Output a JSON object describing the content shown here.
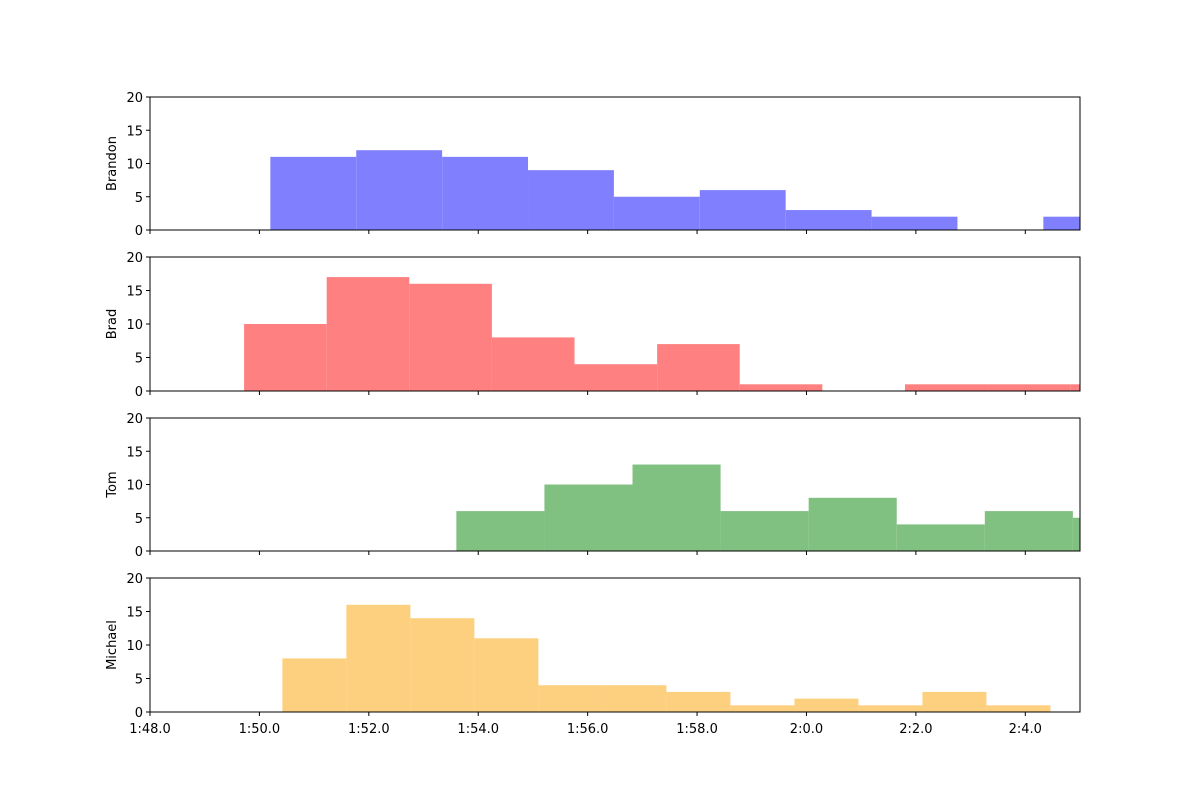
{
  "chart_data": [
    {
      "type": "bar",
      "ylabel": "Brandon",
      "color": "#8080ff",
      "ylim": [
        0,
        20
      ],
      "yticks": [
        0,
        5,
        10,
        15,
        20
      ],
      "xlim": [
        108,
        125
      ],
      "bins": [
        {
          "x0": 110.2,
          "x1": 111.77,
          "value": 11
        },
        {
          "x0": 111.77,
          "x1": 113.34,
          "value": 12
        },
        {
          "x0": 113.34,
          "x1": 114.91,
          "value": 11
        },
        {
          "x0": 114.91,
          "x1": 116.48,
          "value": 9
        },
        {
          "x0": 116.48,
          "x1": 118.05,
          "value": 5
        },
        {
          "x0": 118.05,
          "x1": 119.62,
          "value": 6
        },
        {
          "x0": 119.62,
          "x1": 121.19,
          "value": 3
        },
        {
          "x0": 121.19,
          "x1": 122.76,
          "value": 2
        },
        {
          "x0": 124.33,
          "x1": 125.9,
          "value": 2
        }
      ]
    },
    {
      "type": "bar",
      "ylabel": "Brad",
      "color": "#ff8080",
      "ylim": [
        0,
        20
      ],
      "yticks": [
        0,
        5,
        10,
        15,
        20
      ],
      "xlim": [
        108,
        125
      ],
      "bins": [
        {
          "x0": 109.72,
          "x1": 111.23,
          "value": 10
        },
        {
          "x0": 111.23,
          "x1": 112.74,
          "value": 17
        },
        {
          "x0": 112.74,
          "x1": 114.25,
          "value": 16
        },
        {
          "x0": 114.25,
          "x1": 115.76,
          "value": 8
        },
        {
          "x0": 115.76,
          "x1": 117.27,
          "value": 4
        },
        {
          "x0": 117.27,
          "x1": 118.78,
          "value": 7
        },
        {
          "x0": 118.78,
          "x1": 120.29,
          "value": 1
        },
        {
          "x0": 121.8,
          "x1": 123.31,
          "value": 1
        },
        {
          "x0": 123.31,
          "x1": 124.82,
          "value": 1
        },
        {
          "x0": 124.82,
          "x1": 126.33,
          "value": 1
        }
      ]
    },
    {
      "type": "bar",
      "ylabel": "Tom",
      "color": "#80c080",
      "ylim": [
        0,
        20
      ],
      "yticks": [
        0,
        5,
        10,
        15,
        20
      ],
      "xlim": [
        108,
        125
      ],
      "bins": [
        {
          "x0": 113.6,
          "x1": 115.21,
          "value": 6
        },
        {
          "x0": 115.21,
          "x1": 116.82,
          "value": 10
        },
        {
          "x0": 116.82,
          "x1": 118.43,
          "value": 13
        },
        {
          "x0": 118.43,
          "x1": 120.04,
          "value": 6
        },
        {
          "x0": 120.04,
          "x1": 121.65,
          "value": 8
        },
        {
          "x0": 121.65,
          "x1": 123.26,
          "value": 4
        },
        {
          "x0": 123.26,
          "x1": 124.87,
          "value": 6
        },
        {
          "x0": 124.87,
          "x1": 126.48,
          "value": 5
        }
      ]
    },
    {
      "type": "bar",
      "ylabel": "Michael",
      "color": "#fdd080",
      "ylim": [
        0,
        20
      ],
      "yticks": [
        0,
        5,
        10,
        15,
        20
      ],
      "xlim": [
        108,
        125
      ],
      "bins": [
        {
          "x0": 110.42,
          "x1": 111.59,
          "value": 8
        },
        {
          "x0": 111.59,
          "x1": 112.76,
          "value": 16
        },
        {
          "x0": 112.76,
          "x1": 113.93,
          "value": 14
        },
        {
          "x0": 113.93,
          "x1": 115.1,
          "value": 11
        },
        {
          "x0": 115.1,
          "x1": 116.27,
          "value": 4
        },
        {
          "x0": 116.27,
          "x1": 117.44,
          "value": 4
        },
        {
          "x0": 117.44,
          "x1": 118.61,
          "value": 3
        },
        {
          "x0": 118.61,
          "x1": 119.78,
          "value": 1
        },
        {
          "x0": 119.78,
          "x1": 120.95,
          "value": 2
        },
        {
          "x0": 120.95,
          "x1": 122.12,
          "value": 1
        },
        {
          "x0": 122.12,
          "x1": 123.29,
          "value": 3
        },
        {
          "x0": 123.29,
          "x1": 124.46,
          "value": 1
        }
      ]
    }
  ],
  "xaxis": {
    "tick_labels": [
      "1:48.0",
      "1:50.0",
      "1:52.0",
      "1:54.0",
      "1:56.0",
      "1:58.0",
      "2:0.0",
      "2:2.0",
      "2:4.0"
    ]
  }
}
